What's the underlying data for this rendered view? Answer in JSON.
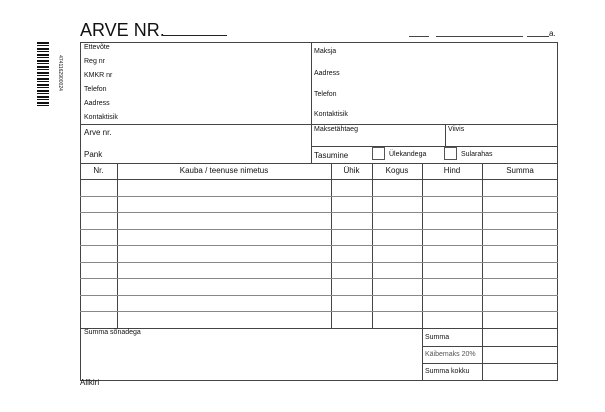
{
  "title": "ARVE NR.",
  "date_suffix": "a.",
  "barcode_digits": "4741162900024",
  "seller": {
    "labels": [
      "Ettevõte",
      "Reg nr",
      "KMKR nr",
      "Telefon",
      "Aadress",
      "Kontaktisik"
    ]
  },
  "buyer": {
    "labels": [
      "Maksja",
      "Aadress",
      "Telefon",
      "Kontaktisik"
    ]
  },
  "invoice": {
    "arve_nr": "Arve nr.",
    "pank": "Pank",
    "due": "Maksetähtaeg",
    "penalty": "Viivis",
    "payment": "Tasumine",
    "transfer": "Ülekandega",
    "cash": "Sularahas"
  },
  "table": {
    "headers": [
      "Nr.",
      "Kauba / teenuse nimetus",
      "Ühik",
      "Kogus",
      "Hind",
      "Summa"
    ],
    "row_count": 9
  },
  "totals": {
    "words": "Summa sõnadega",
    "sum": "Summa",
    "vat": "Käibemaks 20%",
    "total": "Summa kokku"
  },
  "signature": "Allkiri"
}
